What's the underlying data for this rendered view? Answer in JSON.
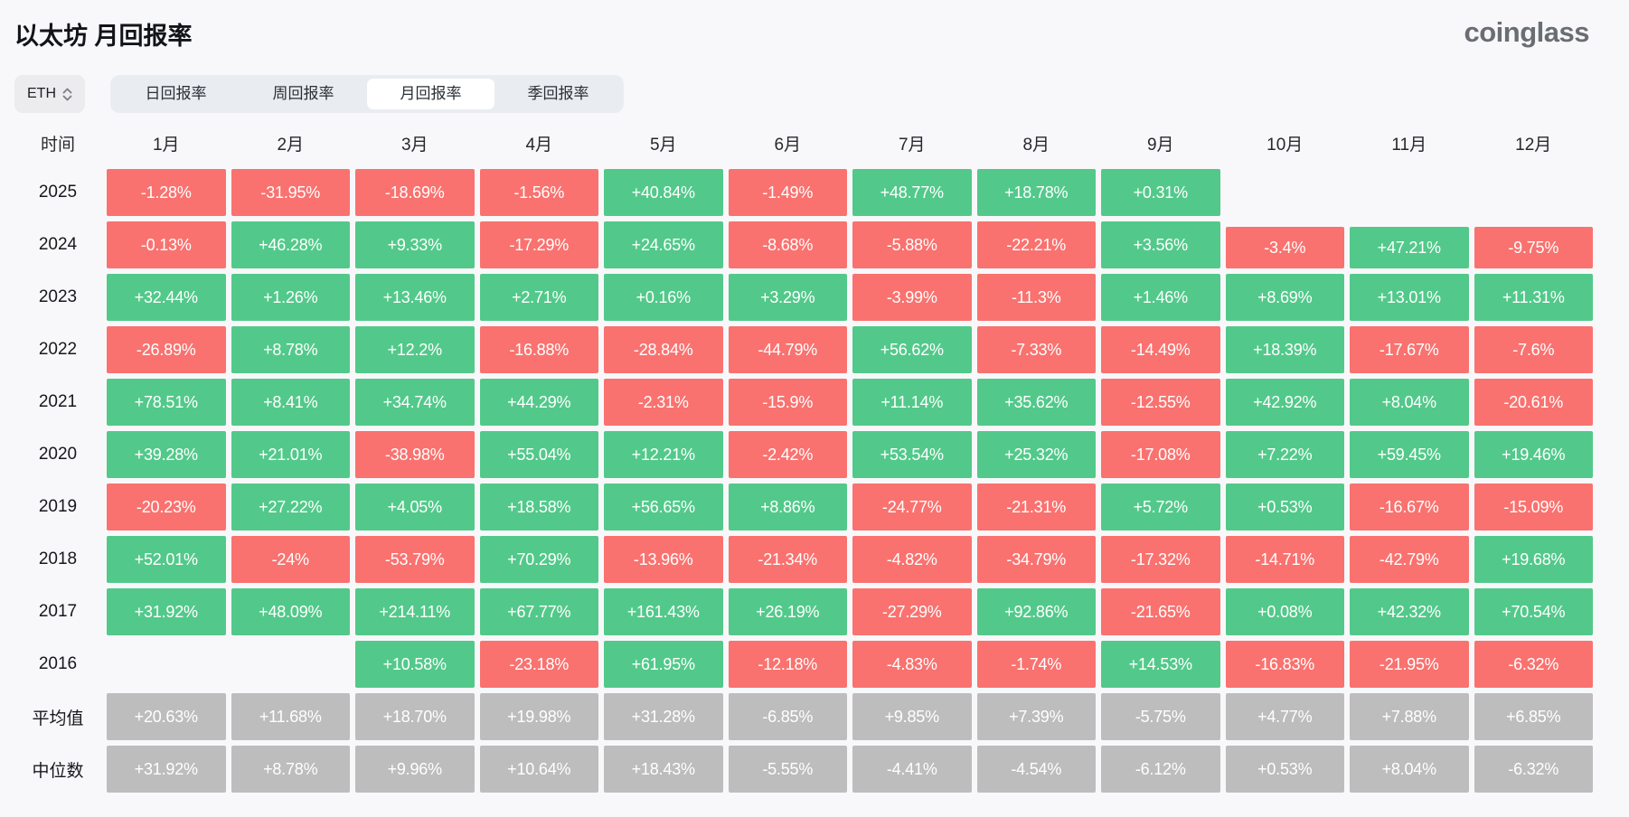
{
  "header": {
    "title": "以太坊 月回报率",
    "logo": "coinglass"
  },
  "controls": {
    "symbol_select": {
      "value": "ETH",
      "icon": "up-down-chevron-icon"
    },
    "tabs": [
      {
        "label": "日回报率",
        "active": false
      },
      {
        "label": "周回报率",
        "active": false
      },
      {
        "label": "月回报率",
        "active": true
      },
      {
        "label": "季回报率",
        "active": false
      }
    ]
  },
  "colors": {
    "positive": "#52c98a",
    "negative": "#f9726f",
    "summary": "#bdbdbd",
    "tab_bar_bg": "#e9edf2",
    "page_bg": "#f8f8fa"
  },
  "chart_data": {
    "type": "heatmap",
    "title": "以太坊 月回报率",
    "row_header": "时间",
    "columns": [
      "1月",
      "2月",
      "3月",
      "4月",
      "5月",
      "6月",
      "7月",
      "8月",
      "9月",
      "10月",
      "11月",
      "12月"
    ],
    "rows": [
      {
        "label": "2025",
        "summary": false,
        "values": [
          "-1.28%",
          "-31.95%",
          "-18.69%",
          "-1.56%",
          "+40.84%",
          "-1.49%",
          "+48.77%",
          "+18.78%",
          "+0.31%",
          "",
          "",
          ""
        ]
      },
      {
        "label": "2024",
        "summary": false,
        "values": [
          "-0.13%",
          "+46.28%",
          "+9.33%",
          "-17.29%",
          "+24.65%",
          "-8.68%",
          "-5.88%",
          "-22.21%",
          "+3.56%",
          "-3.4%",
          "+47.21%",
          "-9.75%"
        ]
      },
      {
        "label": "2023",
        "summary": false,
        "values": [
          "+32.44%",
          "+1.26%",
          "+13.46%",
          "+2.71%",
          "+0.16%",
          "+3.29%",
          "-3.99%",
          "-11.3%",
          "+1.46%",
          "+8.69%",
          "+13.01%",
          "+11.31%"
        ]
      },
      {
        "label": "2022",
        "summary": false,
        "values": [
          "-26.89%",
          "+8.78%",
          "+12.2%",
          "-16.88%",
          "-28.84%",
          "-44.79%",
          "+56.62%",
          "-7.33%",
          "-14.49%",
          "+18.39%",
          "-17.67%",
          "-7.6%"
        ]
      },
      {
        "label": "2021",
        "summary": false,
        "values": [
          "+78.51%",
          "+8.41%",
          "+34.74%",
          "+44.29%",
          "-2.31%",
          "-15.9%",
          "+11.14%",
          "+35.62%",
          "-12.55%",
          "+42.92%",
          "+8.04%",
          "-20.61%"
        ]
      },
      {
        "label": "2020",
        "summary": false,
        "values": [
          "+39.28%",
          "+21.01%",
          "-38.98%",
          "+55.04%",
          "+12.21%",
          "-2.42%",
          "+53.54%",
          "+25.32%",
          "-17.08%",
          "+7.22%",
          "+59.45%",
          "+19.46%"
        ]
      },
      {
        "label": "2019",
        "summary": false,
        "values": [
          "-20.23%",
          "+27.22%",
          "+4.05%",
          "+18.58%",
          "+56.65%",
          "+8.86%",
          "-24.77%",
          "-21.31%",
          "+5.72%",
          "+0.53%",
          "-16.67%",
          "-15.09%"
        ]
      },
      {
        "label": "2018",
        "summary": false,
        "values": [
          "+52.01%",
          "-24%",
          "-53.79%",
          "+70.29%",
          "-13.96%",
          "-21.34%",
          "-4.82%",
          "-34.79%",
          "-17.32%",
          "-14.71%",
          "-42.79%",
          "+19.68%"
        ]
      },
      {
        "label": "2017",
        "summary": false,
        "values": [
          "+31.92%",
          "+48.09%",
          "+214.11%",
          "+67.77%",
          "+161.43%",
          "+26.19%",
          "-27.29%",
          "+92.86%",
          "-21.65%",
          "+0.08%",
          "+42.32%",
          "+70.54%"
        ]
      },
      {
        "label": "2016",
        "summary": false,
        "values": [
          "",
          "",
          "+10.58%",
          "-23.18%",
          "+61.95%",
          "-12.18%",
          "-4.83%",
          "-1.74%",
          "+14.53%",
          "-16.83%",
          "-21.95%",
          "-6.32%"
        ]
      },
      {
        "label": "平均值",
        "summary": true,
        "values": [
          "+20.63%",
          "+11.68%",
          "+18.70%",
          "+19.98%",
          "+31.28%",
          "-6.85%",
          "+9.85%",
          "+7.39%",
          "-5.75%",
          "+4.77%",
          "+7.88%",
          "+6.85%"
        ]
      },
      {
        "label": "中位数",
        "summary": true,
        "values": [
          "+31.92%",
          "+8.78%",
          "+9.96%",
          "+10.64%",
          "+18.43%",
          "-5.55%",
          "-4.41%",
          "-4.54%",
          "-6.12%",
          "+0.53%",
          "+8.04%",
          "-6.32%"
        ]
      }
    ]
  }
}
